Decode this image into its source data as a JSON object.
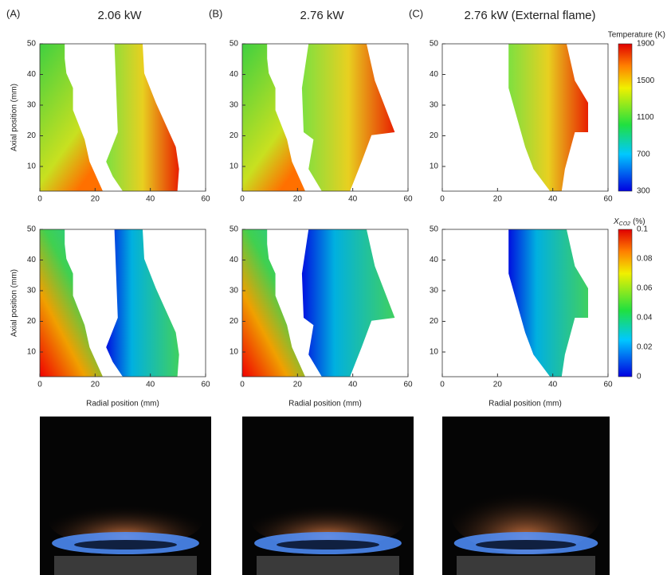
{
  "panels": [
    {
      "label": "(A)",
      "title": "2.06 kW"
    },
    {
      "label": "(B)",
      "title": "2.76 kW"
    },
    {
      "label": "(C)",
      "title": "2.76 kW (External flame)"
    }
  ],
  "axes": {
    "y_label": "Axial position (mm)",
    "x_label": "Radial position (mm)",
    "x_ticks": [
      "0",
      "20",
      "40",
      "60"
    ],
    "y_ticks": [
      "10",
      "20",
      "30",
      "40",
      "50"
    ]
  },
  "colorbars": [
    {
      "title": "Temperature (K)",
      "ticks": [
        "1900",
        "1500",
        "1100",
        "700",
        "300"
      ]
    },
    {
      "title_main": "X",
      "title_sub": "CO2",
      "title_unit": "(%)",
      "ticks": [
        "0.1",
        "0.08",
        "0.06",
        "0.04",
        "0.02",
        "0"
      ]
    }
  ]
}
